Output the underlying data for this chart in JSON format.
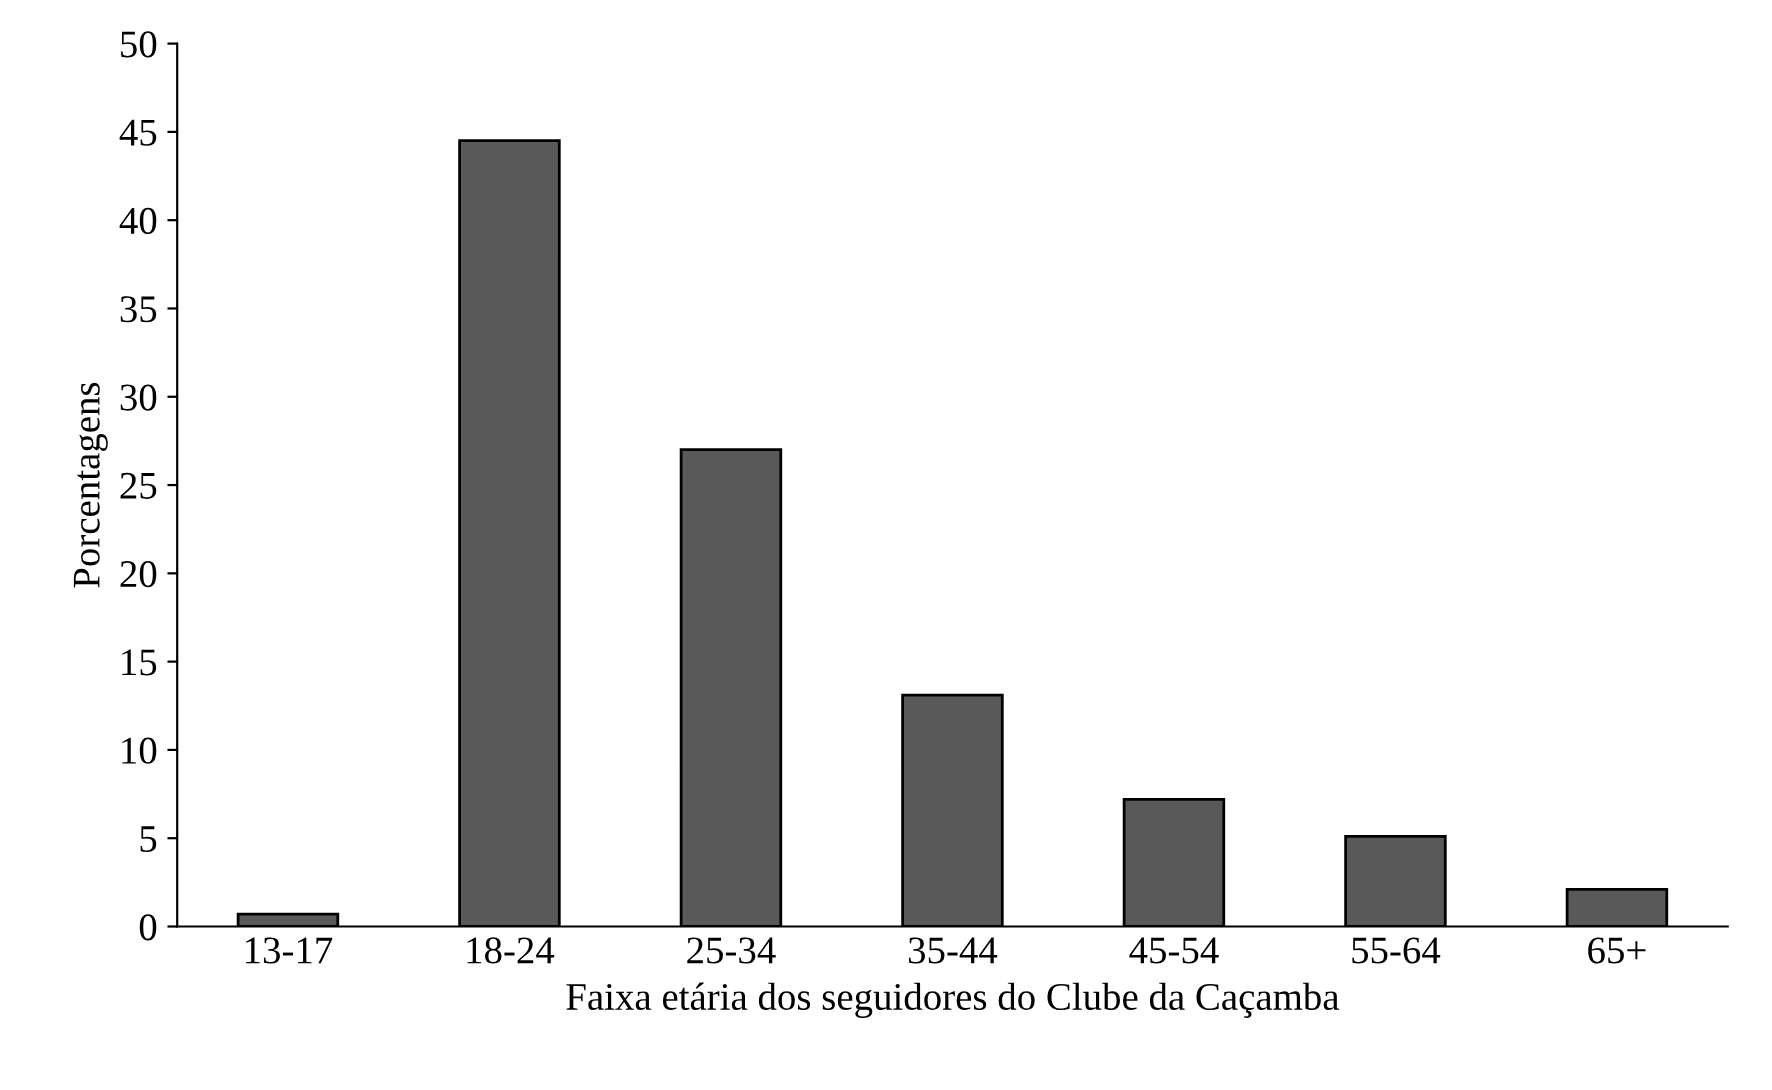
{
  "chart_data": {
    "type": "bar",
    "categories": [
      "13-17",
      "18-24",
      "25-34",
      "35-44",
      "45-54",
      "55-64",
      "65+"
    ],
    "values": [
      0.7,
      44.5,
      27,
      13.1,
      7.2,
      5.1,
      2.1
    ],
    "color": "#595959",
    "xlabel": "Faixa etária dos seguidores do Clube da Caçamba",
    "ylabel": "Porcentagens",
    "ylim": [
      0,
      50
    ],
    "yticks": [
      0,
      5,
      10,
      15,
      20,
      25,
      30,
      35,
      40,
      45,
      50
    ],
    "grid": false
  }
}
